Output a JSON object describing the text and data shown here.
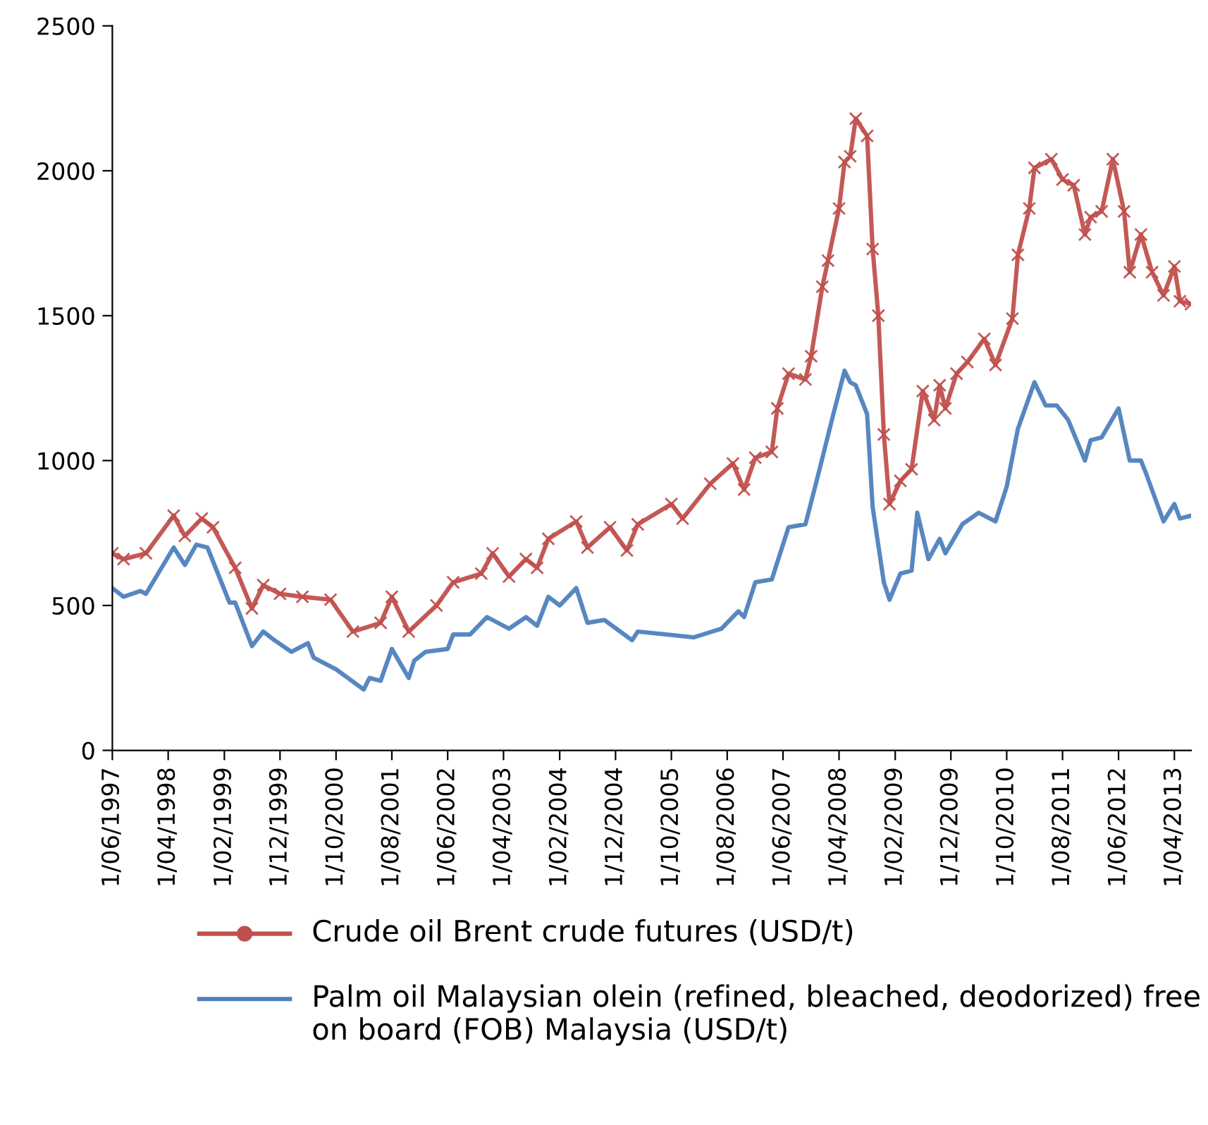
{
  "chart_data": {
    "type": "line",
    "xlim": [
      "1997-06-01",
      "2013-07-01"
    ],
    "xticks": [
      {
        "value": "1997-06-01",
        "label": "1/06/1997"
      },
      {
        "value": "1998-04-01",
        "label": "1/04/1998"
      },
      {
        "value": "1999-02-01",
        "label": "1/02/1999"
      },
      {
        "value": "1999-12-01",
        "label": "1/12/1999"
      },
      {
        "value": "2000-10-01",
        "label": "1/10/2000"
      },
      {
        "value": "2001-08-01",
        "label": "1/08/2001"
      },
      {
        "value": "2002-06-01",
        "label": "1/06/2002"
      },
      {
        "value": "2003-04-01",
        "label": "1/04/2003"
      },
      {
        "value": "2004-02-01",
        "label": "1/02/2004"
      },
      {
        "value": "2004-12-01",
        "label": "1/12/2004"
      },
      {
        "value": "2005-10-01",
        "label": "1/10/2005"
      },
      {
        "value": "2006-08-01",
        "label": "1/08/2006"
      },
      {
        "value": "2007-06-01",
        "label": "1/06/2007"
      },
      {
        "value": "2008-04-01",
        "label": "1/04/2008"
      },
      {
        "value": "2009-02-01",
        "label": "1/02/2009"
      },
      {
        "value": "2009-12-01",
        "label": "1/12/2009"
      },
      {
        "value": "2010-10-01",
        "label": "1/10/2010"
      },
      {
        "value": "2011-08-01",
        "label": "1/08/2011"
      },
      {
        "value": "2012-06-01",
        "label": "1/06/2012"
      },
      {
        "value": "2013-04-01",
        "label": "1/04/2013"
      }
    ],
    "ylim": [
      0,
      2500
    ],
    "yticks": [
      0,
      500,
      1000,
      1500,
      2000,
      2500
    ],
    "legend": "bottom",
    "series": [
      {
        "name": "Crude oil Brent crude futures (USD/t)",
        "color": "#c0504d",
        "marker": "cross",
        "x": [
          "1997-06",
          "1997-08",
          "1997-12",
          "1998-05",
          "1998-07",
          "1998-10",
          "1998-12",
          "1999-04",
          "1999-07",
          "1999-09",
          "1999-12",
          "2000-04",
          "2000-09",
          "2001-01",
          "2001-06",
          "2001-08",
          "2001-11",
          "2002-04",
          "2002-07",
          "2002-12",
          "2003-02",
          "2003-05",
          "2003-08",
          "2003-10",
          "2003-12",
          "2004-05",
          "2004-07",
          "2004-11",
          "2005-02",
          "2005-04",
          "2005-10",
          "2005-12",
          "2006-05",
          "2006-09",
          "2006-11",
          "2007-01",
          "2007-04",
          "2007-05",
          "2007-07",
          "2007-10",
          "2007-11",
          "2008-01",
          "2008-02",
          "2008-04",
          "2008-05",
          "2008-06",
          "2008-07",
          "2008-09",
          "2008-10",
          "2008-11",
          "2008-12",
          "2009-01",
          "2009-03",
          "2009-05",
          "2009-07",
          "2009-09",
          "2009-10",
          "2009-11",
          "2010-01",
          "2010-03",
          "2010-06",
          "2010-08",
          "2010-11",
          "2010-12",
          "2011-02",
          "2011-03",
          "2011-06",
          "2011-08",
          "2011-10",
          "2011-12",
          "2012-01",
          "2012-03",
          "2012-05",
          "2012-07",
          "2012-08",
          "2012-10",
          "2012-12",
          "2013-02",
          "2013-04",
          "2013-05",
          "2013-07"
        ],
        "values": [
          680,
          660,
          680,
          810,
          740,
          800,
          770,
          630,
          490,
          570,
          540,
          530,
          520,
          410,
          440,
          530,
          410,
          500,
          580,
          610,
          680,
          600,
          660,
          630,
          730,
          790,
          700,
          770,
          690,
          780,
          850,
          800,
          920,
          990,
          900,
          1010,
          1030,
          1180,
          1300,
          1280,
          1360,
          1600,
          1690,
          1870,
          2030,
          2050,
          2180,
          2120,
          1730,
          1500,
          1090,
          850,
          930,
          970,
          1240,
          1140,
          1260,
          1180,
          1300,
          1340,
          1420,
          1330,
          1490,
          1710,
          1870,
          2010,
          2040,
          1970,
          1950,
          1780,
          1840,
          1860,
          2040,
          1860,
          1650,
          1780,
          1650,
          1570,
          1670,
          1550,
          1540
        ]
      },
      {
        "name": "Palm oil Malaysian olein (refined, bleached, deodorized) free on board (FOB) Malaysia (USD/t)",
        "color": "#4f81bd",
        "marker": "none",
        "x": [
          "1997-06",
          "1997-08",
          "1997-11",
          "1997-12",
          "1998-05",
          "1998-07",
          "1998-09",
          "1998-11",
          "1999-03",
          "1999-04",
          "1999-07",
          "1999-09",
          "1999-11",
          "2000-02",
          "2000-05",
          "2000-06",
          "2000-10",
          "2001-03",
          "2001-04",
          "2001-06",
          "2001-08",
          "2001-11",
          "2001-12",
          "2002-02",
          "2002-06",
          "2002-07",
          "2002-10",
          "2003-01",
          "2003-05",
          "2003-08",
          "2003-10",
          "2003-12",
          "2004-02",
          "2004-05",
          "2004-07",
          "2004-10",
          "2005-03",
          "2005-04",
          "2005-09",
          "2006-02",
          "2006-07",
          "2006-10",
          "2006-11",
          "2007-01",
          "2007-04",
          "2007-07",
          "2007-10",
          "2007-12",
          "2008-03",
          "2008-05",
          "2008-06",
          "2008-07",
          "2008-09",
          "2008-10",
          "2008-12",
          "2009-01",
          "2009-03",
          "2009-05",
          "2009-06",
          "2009-08",
          "2009-10",
          "2009-11",
          "2010-02",
          "2010-05",
          "2010-08",
          "2010-10",
          "2010-12",
          "2011-03",
          "2011-05",
          "2011-07",
          "2011-09",
          "2011-12",
          "2012-01",
          "2012-03",
          "2012-06",
          "2012-08",
          "2012-10",
          "2012-11",
          "2013-02",
          "2013-04",
          "2013-05",
          "2013-07"
        ],
        "values": [
          560,
          530,
          550,
          540,
          700,
          640,
          710,
          700,
          510,
          510,
          360,
          410,
          380,
          340,
          370,
          320,
          280,
          210,
          250,
          240,
          350,
          250,
          310,
          340,
          350,
          400,
          400,
          460,
          420,
          460,
          430,
          530,
          500,
          560,
          440,
          450,
          380,
          410,
          400,
          390,
          420,
          480,
          460,
          580,
          590,
          770,
          780,
          930,
          1160,
          1310,
          1270,
          1260,
          1160,
          840,
          580,
          520,
          610,
          620,
          820,
          660,
          730,
          680,
          780,
          820,
          790,
          910,
          1110,
          1270,
          1190,
          1190,
          1140,
          1000,
          1070,
          1080,
          1180,
          1000,
          1000,
          950,
          790,
          850,
          800,
          810
        ]
      }
    ]
  }
}
